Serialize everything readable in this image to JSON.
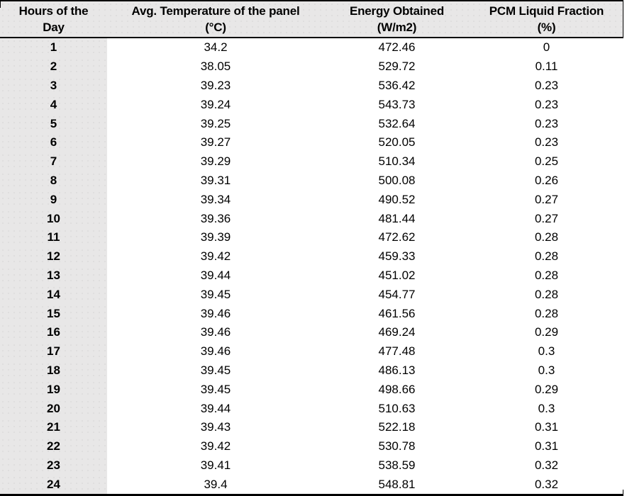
{
  "table": {
    "columns": [
      {
        "id": "hours",
        "line1": "Hours of the",
        "line2": "Day"
      },
      {
        "id": "avg_temperature",
        "line1": "Avg. Temperature of the panel",
        "line2": "(°C)"
      },
      {
        "id": "energy_obtained",
        "line1": "Energy Obtained",
        "line2": "(W/m2)"
      },
      {
        "id": "pcm_liquid_fraction",
        "line1": "PCM Liquid Fraction",
        "line2": "(%)"
      }
    ],
    "rows": [
      [
        "1",
        "34.2",
        "472.46",
        "0"
      ],
      [
        "2",
        "38.05",
        "529.72",
        "0.11"
      ],
      [
        "3",
        "39.23",
        "536.42",
        "0.23"
      ],
      [
        "4",
        "39.24",
        "543.73",
        "0.23"
      ],
      [
        "5",
        "39.25",
        "532.64",
        "0.23"
      ],
      [
        "6",
        "39.27",
        "520.05",
        "0.23"
      ],
      [
        "7",
        "39.29",
        "510.34",
        "0.25"
      ],
      [
        "8",
        "39.31",
        "500.08",
        "0.26"
      ],
      [
        "9",
        "39.34",
        "490.52",
        "0.27"
      ],
      [
        "10",
        "39.36",
        "481.44",
        "0.27"
      ],
      [
        "11",
        "39.39",
        "472.62",
        "0.28"
      ],
      [
        "12",
        "39.42",
        "459.33",
        "0.28"
      ],
      [
        "13",
        "39.44",
        "451.02",
        "0.28"
      ],
      [
        "14",
        "39.45",
        "454.77",
        "0.28"
      ],
      [
        "15",
        "39.46",
        "461.56",
        "0.28"
      ],
      [
        "16",
        "39.46",
        "469.24",
        "0.29"
      ],
      [
        "17",
        "39.46",
        "477.48",
        "0.3"
      ],
      [
        "18",
        "39.45",
        "486.13",
        "0.3"
      ],
      [
        "19",
        "39.45",
        "498.66",
        "0.29"
      ],
      [
        "20",
        "39.44",
        "510.63",
        "0.3"
      ],
      [
        "21",
        "39.43",
        "522.18",
        "0.31"
      ],
      [
        "22",
        "39.42",
        "530.78",
        "0.31"
      ],
      [
        "23",
        "39.41",
        "538.59",
        "0.32"
      ],
      [
        "24",
        "39.4",
        "548.81",
        "0.32"
      ]
    ]
  },
  "colors": {
    "header_bg": "#e8e7e7",
    "border": "#000000",
    "text": "#000000",
    "body_bg": "#ffffff"
  }
}
